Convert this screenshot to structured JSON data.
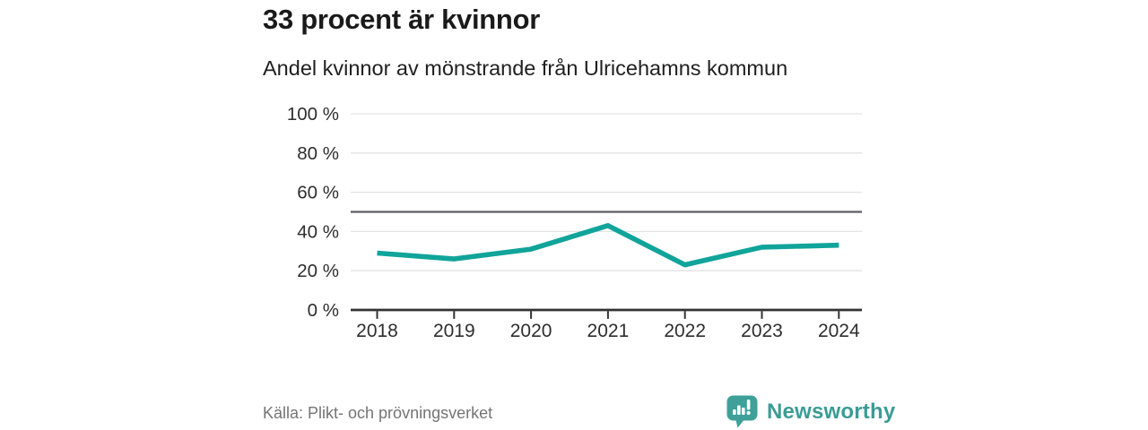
{
  "header": {
    "title": "33 procent är kvinnor",
    "subtitle": "Andel kvinnor av mönstrande från Ulricehamns kommun"
  },
  "chart_data": {
    "type": "line",
    "x": [
      "2018",
      "2019",
      "2020",
      "2021",
      "2022",
      "2023",
      "2024"
    ],
    "series": [
      {
        "name": "Andel kvinnor av mönstrande",
        "values": [
          29,
          26,
          31,
          43,
          23,
          32,
          33
        ]
      }
    ],
    "title": "33 procent är kvinnor",
    "subtitle": "Andel kvinnor av mönstrande från Ulricehamns kommun",
    "xlabel": "",
    "ylabel": "",
    "ylim": [
      0,
      100
    ],
    "yticks": [
      0,
      20,
      40,
      60,
      80,
      100
    ],
    "ytick_format": "{v} %",
    "reference_line": 50,
    "grid": true,
    "legend": "none",
    "line_color": "#10a49a",
    "grid_color": "#e3e3e3",
    "reference_line_color": "#5d5e64",
    "axis_color": "#333333"
  },
  "footer": {
    "source": "Källa: Plikt- och prövningsverket",
    "brand": "Newsworthy",
    "brand_color": "#3b9c95",
    "brand_icon_color": "#3ea099"
  }
}
